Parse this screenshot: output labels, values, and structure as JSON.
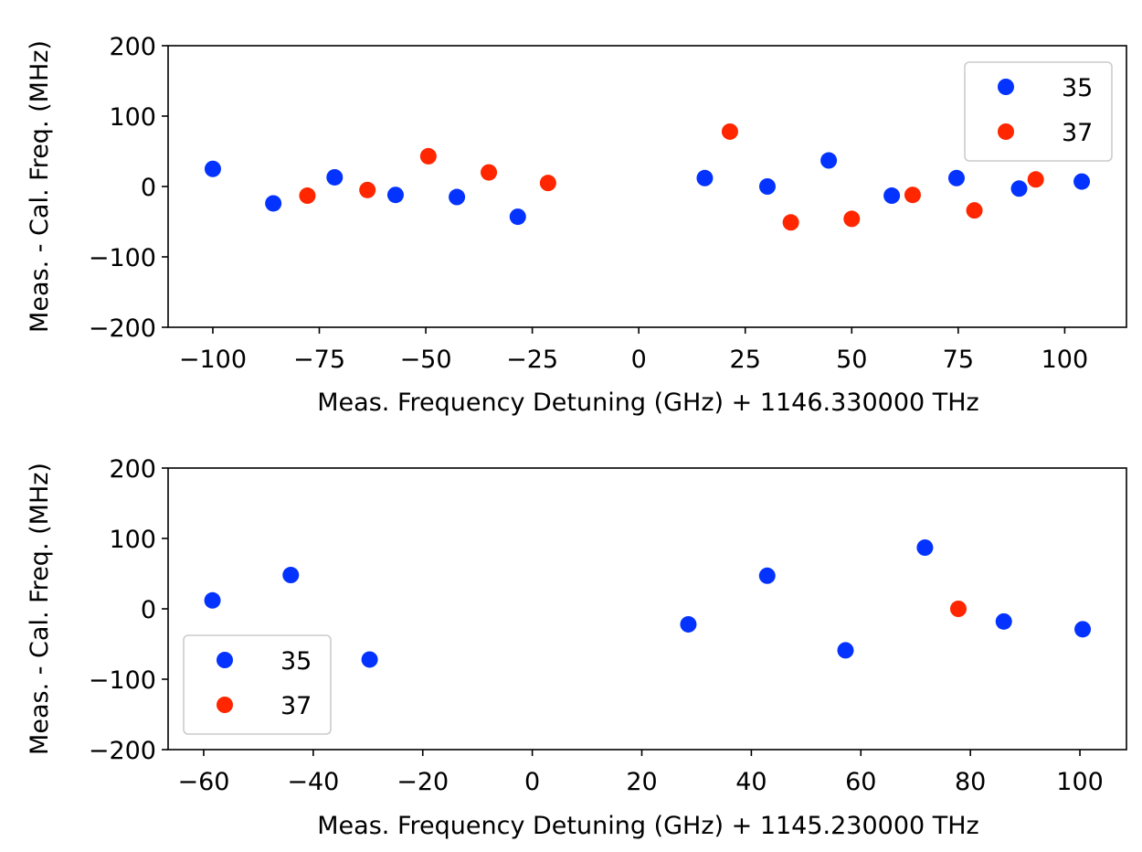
{
  "colors": {
    "series_35": "#0433ff",
    "series_37": "#ff2600"
  },
  "chart_data": [
    {
      "type": "scatter",
      "title": "",
      "xlabel": "Meas. Frequency Detuning (GHz) + 1146.330000 THz",
      "ylabel": "Meas. - Cal. Freq. (MHz)",
      "xlim": [
        -110.5,
        114.5
      ],
      "ylim": [
        -200,
        200
      ],
      "xticks": [
        -100,
        -75,
        -50,
        -25,
        0,
        25,
        50,
        75,
        100
      ],
      "xtick_labels": [
        "−100",
        "−75",
        "−50",
        "−25",
        "0",
        "25",
        "50",
        "75",
        "100"
      ],
      "yticks": [
        200,
        100,
        0,
        -100,
        -200
      ],
      "ytick_labels": [
        "200",
        "100",
        "0",
        "−100",
        "−200"
      ],
      "grid": false,
      "legend_position": "upper right",
      "series": [
        {
          "name": "35",
          "color": "#0433ff",
          "points": [
            [
              -100.0,
              25
            ],
            [
              -85.8,
              -24
            ],
            [
              -71.4,
              13
            ],
            [
              -57.1,
              -12
            ],
            [
              -42.7,
              -15
            ],
            [
              -28.4,
              -43
            ],
            [
              15.5,
              12
            ],
            [
              30.2,
              0
            ],
            [
              44.6,
              37
            ],
            [
              59.4,
              -13
            ],
            [
              74.6,
              12
            ],
            [
              89.3,
              -3
            ],
            [
              104.0,
              7
            ]
          ]
        },
        {
          "name": "37",
          "color": "#ff2600",
          "points": [
            [
              -77.8,
              -13
            ],
            [
              -63.7,
              -5
            ],
            [
              -49.4,
              43
            ],
            [
              -35.2,
              20
            ],
            [
              -21.3,
              5
            ],
            [
              21.4,
              78
            ],
            [
              35.7,
              -51
            ],
            [
              50.0,
              -46
            ],
            [
              64.3,
              -12
            ],
            [
              78.8,
              -34
            ],
            [
              93.2,
              10
            ]
          ]
        }
      ]
    },
    {
      "type": "scatter",
      "title": "",
      "xlabel": "Meas. Frequency Detuning (GHz) + 1145.230000 THz",
      "ylabel": "Meas. - Cal. Freq. (MHz)",
      "xlim": [
        -66.5,
        108.5
      ],
      "ylim": [
        -200,
        200
      ],
      "xticks": [
        -60,
        -40,
        -20,
        0,
        20,
        40,
        60,
        80,
        100
      ],
      "xtick_labels": [
        "−60",
        "−40",
        "−20",
        "0",
        "20",
        "40",
        "60",
        "80",
        "100"
      ],
      "yticks": [
        200,
        100,
        0,
        -100,
        -200
      ],
      "ytick_labels": [
        "200",
        "100",
        "0",
        "−100",
        "−200"
      ],
      "grid": false,
      "legend_position": "lower left",
      "series": [
        {
          "name": "35",
          "color": "#0433ff",
          "points": [
            [
              -58.4,
              12
            ],
            [
              -44.1,
              48
            ],
            [
              -29.7,
              -72
            ],
            [
              28.5,
              -22
            ],
            [
              42.9,
              47
            ],
            [
              57.2,
              -59
            ],
            [
              71.7,
              87
            ],
            [
              86.1,
              -18
            ],
            [
              100.5,
              -29
            ]
          ]
        },
        {
          "name": "37",
          "color": "#ff2600",
          "points": [
            [
              77.8,
              0
            ]
          ]
        }
      ]
    }
  ]
}
